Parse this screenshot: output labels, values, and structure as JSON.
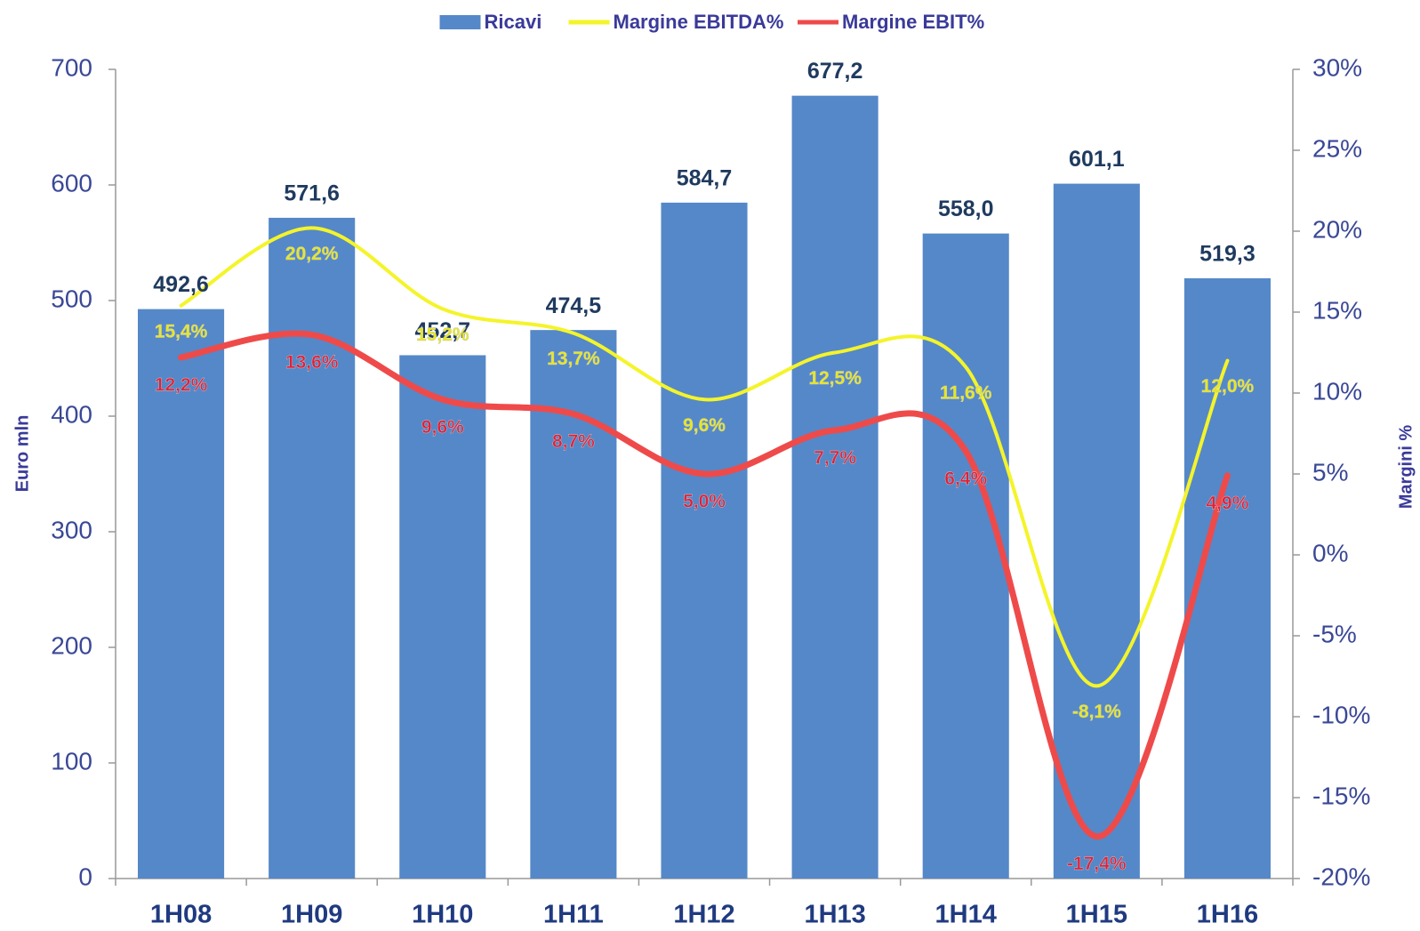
{
  "chart_data": {
    "type": "bar_line",
    "categories": [
      "1H08",
      "1H09",
      "1H10",
      "1H11",
      "1H12",
      "1H13",
      "1H14",
      "1H15",
      "1H16"
    ],
    "series": [
      {
        "name": "Ricavi",
        "type": "bar",
        "color": "#5588c8",
        "values": [
          492.6,
          571.6,
          452.7,
          474.5,
          584.7,
          677.2,
          558.0,
          601.1,
          519.3
        ],
        "value_labels": [
          "492,6",
          "571,6",
          "452,7",
          "474,5",
          "584,7",
          "677,2",
          "558,0",
          "601,1",
          "519,3"
        ]
      },
      {
        "name": "Margine EBITDA%",
        "type": "line",
        "axis": "y2",
        "color": "#f4f42a",
        "label_color": "#e8e81c",
        "values": [
          15.4,
          20.2,
          15.2,
          13.7,
          9.6,
          12.5,
          11.6,
          -8.1,
          12.0
        ],
        "value_labels": [
          "15,4%",
          "20,2%",
          "15,2%",
          "13,7%",
          "9,6%",
          "12,5%",
          "11,6%",
          "-8,1%",
          "12,0%"
        ]
      },
      {
        "name": "Margine EBIT%",
        "type": "line",
        "axis": "y2",
        "color": "#ef4a4a",
        "label_color": "#e0203a",
        "values": [
          12.2,
          13.6,
          9.6,
          8.7,
          5.0,
          7.7,
          6.4,
          -17.4,
          4.9
        ],
        "value_labels": [
          "12,2%",
          "13,6%",
          "9,6%",
          "8,7%",
          "5,0%",
          "7,7%",
          "6,4%",
          "-17,4%",
          "4,9%"
        ]
      }
    ],
    "ylabel": "Euro mln",
    "y2label": "Margini %",
    "ylim": [
      0,
      700
    ],
    "yticks": [
      0,
      100,
      200,
      300,
      400,
      500,
      600,
      700
    ],
    "y2lim": [
      -20,
      30
    ],
    "y2ticks": [
      {
        "value": -20,
        "label": "-20%"
      },
      {
        "value": -15,
        "label": "-15%"
      },
      {
        "value": -10,
        "label": "-10%"
      },
      {
        "value": -5,
        "label": "-5%"
      },
      {
        "value": 0,
        "label": "0%"
      },
      {
        "value": 5,
        "label": "5%"
      },
      {
        "value": 10,
        "label": "10%"
      },
      {
        "value": 15,
        "label": "15%"
      },
      {
        "value": 20,
        "label": "20%"
      },
      {
        "value": 25,
        "label": "25%"
      },
      {
        "value": 30,
        "label": "30%"
      }
    ],
    "legend": "top",
    "smooth": true
  }
}
